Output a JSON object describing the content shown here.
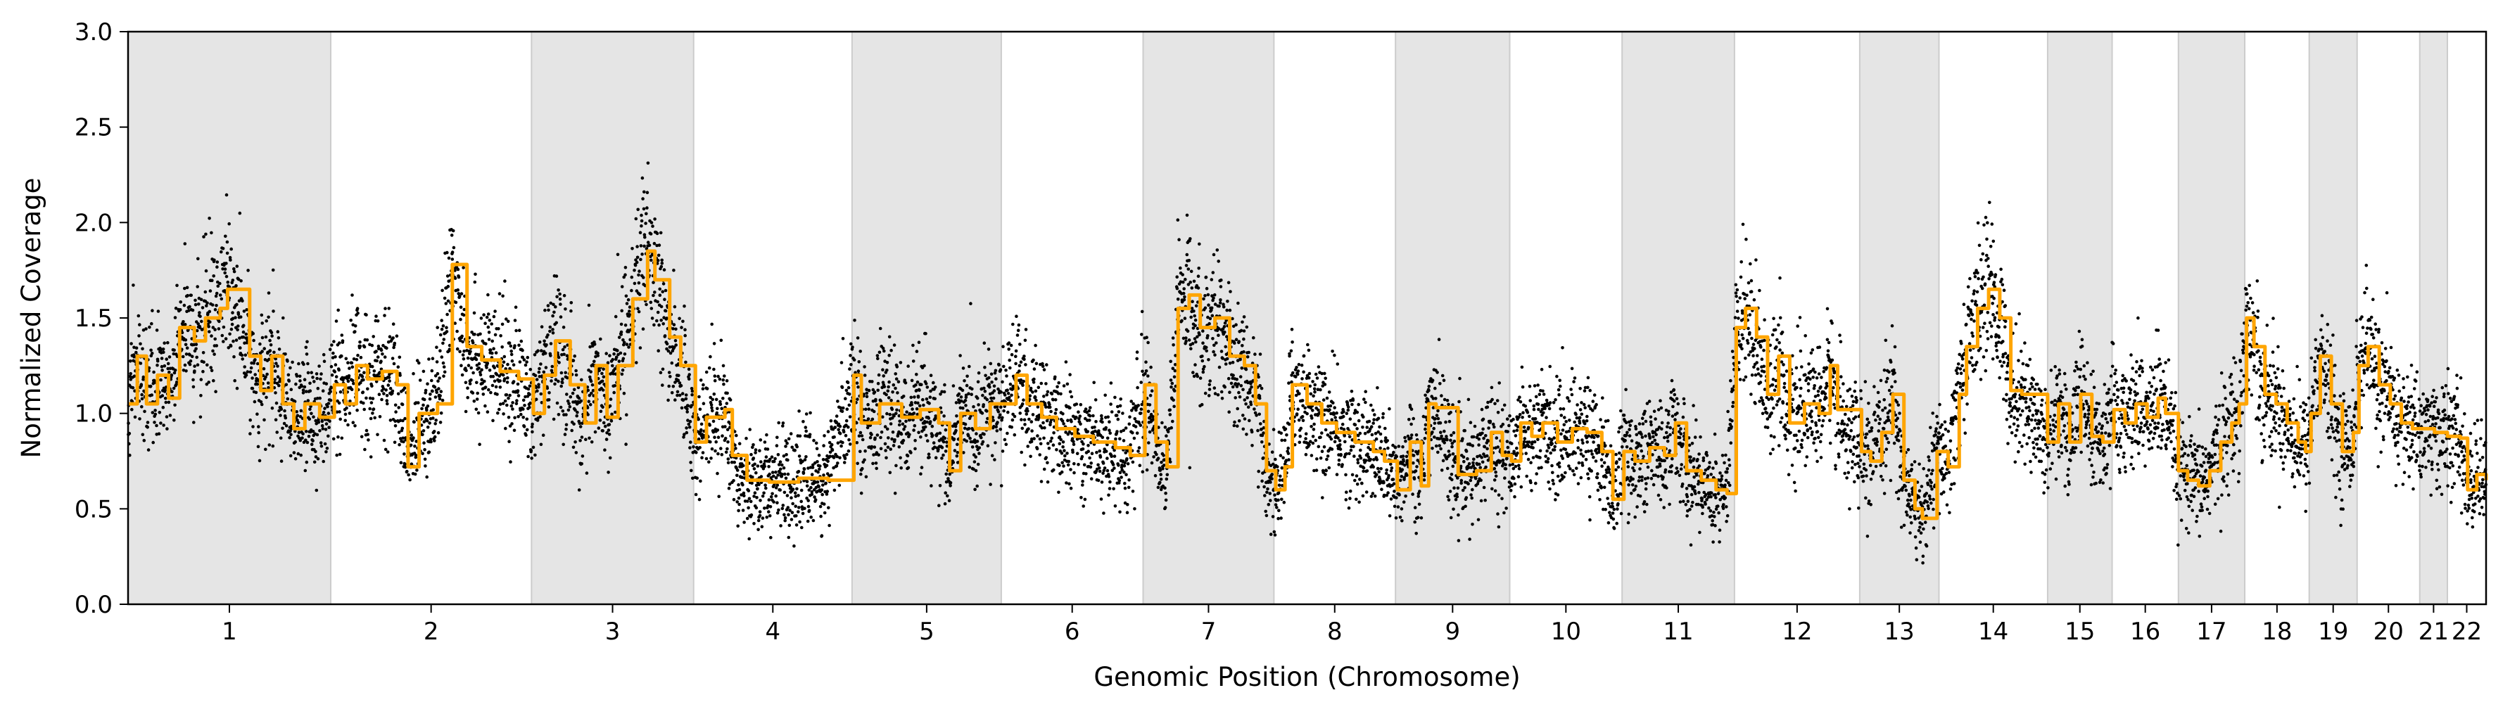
{
  "chart_data": {
    "type": "scatter",
    "title": "",
    "xlabel": "Genomic Position (Chromosome)",
    "ylabel": "Normalized Coverage",
    "ylim": [
      0,
      3.0
    ],
    "yticks": [
      "0.0",
      "0.5",
      "1.0",
      "1.5",
      "2.0",
      "2.5",
      "3.0"
    ],
    "grid": false,
    "legend": "none",
    "colors": {
      "points": "#000000",
      "segments": "#FFA500",
      "band": "#e5e5e5",
      "band_edge": "#cccccc"
    },
    "chromosomes": [
      {
        "label": "1",
        "span": [
          0.0,
          55.0
        ],
        "shaded": true
      },
      {
        "label": "2",
        "span": [
          55.0,
          109.5
        ],
        "shaded": false
      },
      {
        "label": "3",
        "span": [
          109.5,
          153.5
        ],
        "shaded": true
      },
      {
        "label": "4",
        "span": [
          153.5,
          196.5
        ],
        "shaded": false
      },
      {
        "label": "5",
        "span": [
          196.5,
          237.0
        ],
        "shaded": true
      },
      {
        "label": "6",
        "span": [
          237.0,
          275.5
        ],
        "shaded": false
      },
      {
        "label": "7",
        "span": [
          275.5,
          311.0
        ],
        "shaded": true
      },
      {
        "label": "8",
        "span": [
          311.0,
          344.0
        ],
        "shaded": false
      },
      {
        "label": "9",
        "span": [
          344.0,
          375.0
        ],
        "shaded": true
      },
      {
        "label": "10",
        "span": [
          375.0,
          405.5
        ],
        "shaded": false
      },
      {
        "label": "11",
        "span": [
          405.5,
          436.0
        ],
        "shaded": true
      },
      {
        "label": "12",
        "span": [
          436.0,
          470.0
        ],
        "shaded": false
      },
      {
        "label": "13",
        "span": [
          470.0,
          491.5
        ],
        "shaded": true
      },
      {
        "label": "14",
        "span": [
          491.5,
          521.0
        ],
        "shaded": false
      },
      {
        "label": "15",
        "span": [
          521.0,
          538.5
        ],
        "shaded": true
      },
      {
        "label": "16",
        "span": [
          538.5,
          556.5
        ],
        "shaded": false
      },
      {
        "label": "17",
        "span": [
          556.5,
          574.5
        ],
        "shaded": true
      },
      {
        "label": "18",
        "span": [
          574.5,
          592.0
        ],
        "shaded": false
      },
      {
        "label": "19",
        "span": [
          592.0,
          605.0
        ],
        "shaded": true
      },
      {
        "label": "20",
        "span": [
          605.0,
          622.0
        ],
        "shaded": false
      },
      {
        "label": "21",
        "span": [
          622.0,
          629.5
        ],
        "shaded": true
      },
      {
        "label": "22",
        "span": [
          629.5,
          640.0
        ],
        "shaded": false
      }
    ],
    "segments": [
      [
        0.0,
        1.05
      ],
      [
        2.5,
        1.3
      ],
      [
        5.0,
        1.05
      ],
      [
        8.0,
        1.2
      ],
      [
        11.0,
        1.08
      ],
      [
        14.0,
        1.45
      ],
      [
        18.0,
        1.38
      ],
      [
        21.0,
        1.5
      ],
      [
        25.0,
        1.55
      ],
      [
        27.0,
        1.65
      ],
      [
        33.0,
        1.3
      ],
      [
        36.0,
        1.12
      ],
      [
        39.0,
        1.3
      ],
      [
        42.0,
        1.05
      ],
      [
        45.0,
        0.92
      ],
      [
        48.0,
        1.05
      ],
      [
        52.0,
        0.98
      ],
      [
        56.0,
        1.15
      ],
      [
        59.0,
        1.05
      ],
      [
        62.0,
        1.25
      ],
      [
        65.0,
        1.18
      ],
      [
        69.0,
        1.22
      ],
      [
        73.0,
        1.15
      ],
      [
        76.0,
        0.72
      ],
      [
        79.0,
        1.0
      ],
      [
        84.0,
        1.05
      ],
      [
        88.0,
        1.78
      ],
      [
        92.0,
        1.35
      ],
      [
        96.0,
        1.28
      ],
      [
        101.0,
        1.22
      ],
      [
        106.0,
        1.18
      ],
      [
        110.0,
        1.0
      ],
      [
        113.0,
        1.2
      ],
      [
        116.0,
        1.38
      ],
      [
        120.0,
        1.15
      ],
      [
        124.0,
        0.95
      ],
      [
        127.0,
        1.25
      ],
      [
        130.0,
        0.98
      ],
      [
        133.0,
        1.25
      ],
      [
        137.0,
        1.6
      ],
      [
        141.0,
        1.85
      ],
      [
        143.0,
        1.7
      ],
      [
        147.0,
        1.4
      ],
      [
        150.0,
        1.25
      ],
      [
        154.0,
        0.85
      ],
      [
        157.0,
        0.98
      ],
      [
        162.0,
        1.02
      ],
      [
        164.0,
        0.78
      ],
      [
        168.0,
        0.65
      ],
      [
        174.0,
        0.64
      ],
      [
        182.0,
        0.66
      ],
      [
        190.0,
        0.65
      ],
      [
        197.0,
        1.2
      ],
      [
        199.0,
        0.95
      ],
      [
        204.0,
        1.05
      ],
      [
        210.0,
        0.98
      ],
      [
        215.0,
        1.02
      ],
      [
        220.0,
        0.95
      ],
      [
        223.0,
        0.7
      ],
      [
        226.0,
        1.0
      ],
      [
        230.0,
        0.92
      ],
      [
        234.0,
        1.05
      ],
      [
        238.0,
        1.05
      ],
      [
        241.0,
        1.2
      ],
      [
        244.0,
        1.05
      ],
      [
        248.0,
        0.98
      ],
      [
        252.0,
        0.92
      ],
      [
        257.0,
        0.88
      ],
      [
        262.0,
        0.85
      ],
      [
        268.0,
        0.82
      ],
      [
        272.0,
        0.78
      ],
      [
        276.0,
        1.15
      ],
      [
        279.0,
        0.85
      ],
      [
        282.0,
        0.72
      ],
      [
        285.0,
        1.55
      ],
      [
        288.0,
        1.62
      ],
      [
        291.0,
        1.45
      ],
      [
        295.0,
        1.5
      ],
      [
        299.0,
        1.3
      ],
      [
        303.0,
        1.25
      ],
      [
        306.0,
        1.05
      ],
      [
        309.0,
        0.7
      ],
      [
        311.5,
        0.6
      ],
      [
        314.0,
        0.72
      ],
      [
        316.0,
        1.15
      ],
      [
        320.0,
        1.05
      ],
      [
        324.0,
        0.95
      ],
      [
        328.0,
        0.9
      ],
      [
        333.0,
        0.85
      ],
      [
        338.0,
        0.8
      ],
      [
        341.0,
        0.75
      ],
      [
        344.5,
        0.6
      ],
      [
        348.0,
        0.85
      ],
      [
        351.0,
        0.62
      ],
      [
        353.0,
        1.05
      ],
      [
        355.0,
        1.03
      ],
      [
        361.0,
        0.68
      ],
      [
        366.0,
        0.7
      ],
      [
        370.0,
        0.9
      ],
      [
        373.0,
        0.78
      ],
      [
        375.5,
        0.75
      ],
      [
        378.0,
        0.95
      ],
      [
        381.0,
        0.88
      ],
      [
        384.0,
        0.95
      ],
      [
        388.0,
        0.85
      ],
      [
        392.0,
        0.92
      ],
      [
        396.0,
        0.9
      ],
      [
        400.0,
        0.8
      ],
      [
        403.0,
        0.55
      ],
      [
        406.0,
        0.8
      ],
      [
        409.0,
        0.75
      ],
      [
        413.0,
        0.82
      ],
      [
        417.0,
        0.78
      ],
      [
        420.0,
        0.95
      ],
      [
        423.0,
        0.7
      ],
      [
        427.0,
        0.65
      ],
      [
        431.0,
        0.6
      ],
      [
        434.0,
        0.58
      ],
      [
        436.5,
        1.45
      ],
      [
        439.0,
        1.55
      ],
      [
        442.0,
        1.4
      ],
      [
        445.0,
        1.1
      ],
      [
        448.0,
        1.3
      ],
      [
        451.0,
        0.95
      ],
      [
        455.0,
        1.05
      ],
      [
        459.0,
        1.0
      ],
      [
        462.0,
        1.25
      ],
      [
        464.0,
        1.02
      ],
      [
        470.5,
        0.8
      ],
      [
        473.0,
        0.75
      ],
      [
        476.0,
        0.9
      ],
      [
        479.0,
        1.1
      ],
      [
        482.0,
        0.65
      ],
      [
        485.0,
        0.5
      ],
      [
        487.0,
        0.45
      ],
      [
        491.0,
        0.8
      ],
      [
        494.0,
        0.72
      ],
      [
        497.0,
        1.1
      ],
      [
        499.0,
        1.35
      ],
      [
        502.0,
        1.55
      ],
      [
        505.0,
        1.65
      ],
      [
        508.0,
        1.5
      ],
      [
        511.0,
        1.12
      ],
      [
        514.0,
        1.1
      ],
      [
        521.0,
        0.85
      ],
      [
        524.0,
        1.05
      ],
      [
        527.0,
        0.85
      ],
      [
        530.0,
        1.1
      ],
      [
        533.0,
        0.88
      ],
      [
        536.0,
        0.85
      ],
      [
        539.0,
        1.02
      ],
      [
        542.0,
        0.95
      ],
      [
        545.0,
        1.05
      ],
      [
        548.0,
        0.98
      ],
      [
        551.0,
        1.08
      ],
      [
        553.0,
        1.0
      ],
      [
        556.5,
        0.7
      ],
      [
        559.0,
        0.65
      ],
      [
        562.0,
        0.62
      ],
      [
        565.0,
        0.7
      ],
      [
        568.0,
        0.85
      ],
      [
        571.0,
        0.95
      ],
      [
        573.0,
        1.05
      ],
      [
        575.0,
        1.5
      ],
      [
        577.0,
        1.35
      ],
      [
        580.0,
        1.1
      ],
      [
        583.0,
        1.05
      ],
      [
        586.0,
        0.95
      ],
      [
        589.0,
        0.85
      ],
      [
        591.0,
        0.8
      ],
      [
        592.5,
        1.0
      ],
      [
        595.0,
        1.3
      ],
      [
        598.0,
        1.05
      ],
      [
        601.0,
        0.8
      ],
      [
        604.0,
        0.9
      ],
      [
        605.5,
        1.25
      ],
      [
        608.0,
        1.35
      ],
      [
        611.0,
        1.15
      ],
      [
        614.0,
        1.05
      ],
      [
        617.0,
        0.95
      ],
      [
        620.0,
        0.92
      ],
      [
        622.0,
        0.92
      ],
      [
        626.0,
        0.9
      ],
      [
        629.5,
        0.88
      ],
      [
        633.0,
        0.87
      ],
      [
        635.0,
        0.6
      ],
      [
        637.5,
        0.68
      ],
      [
        640.0,
        0.65
      ]
    ]
  }
}
